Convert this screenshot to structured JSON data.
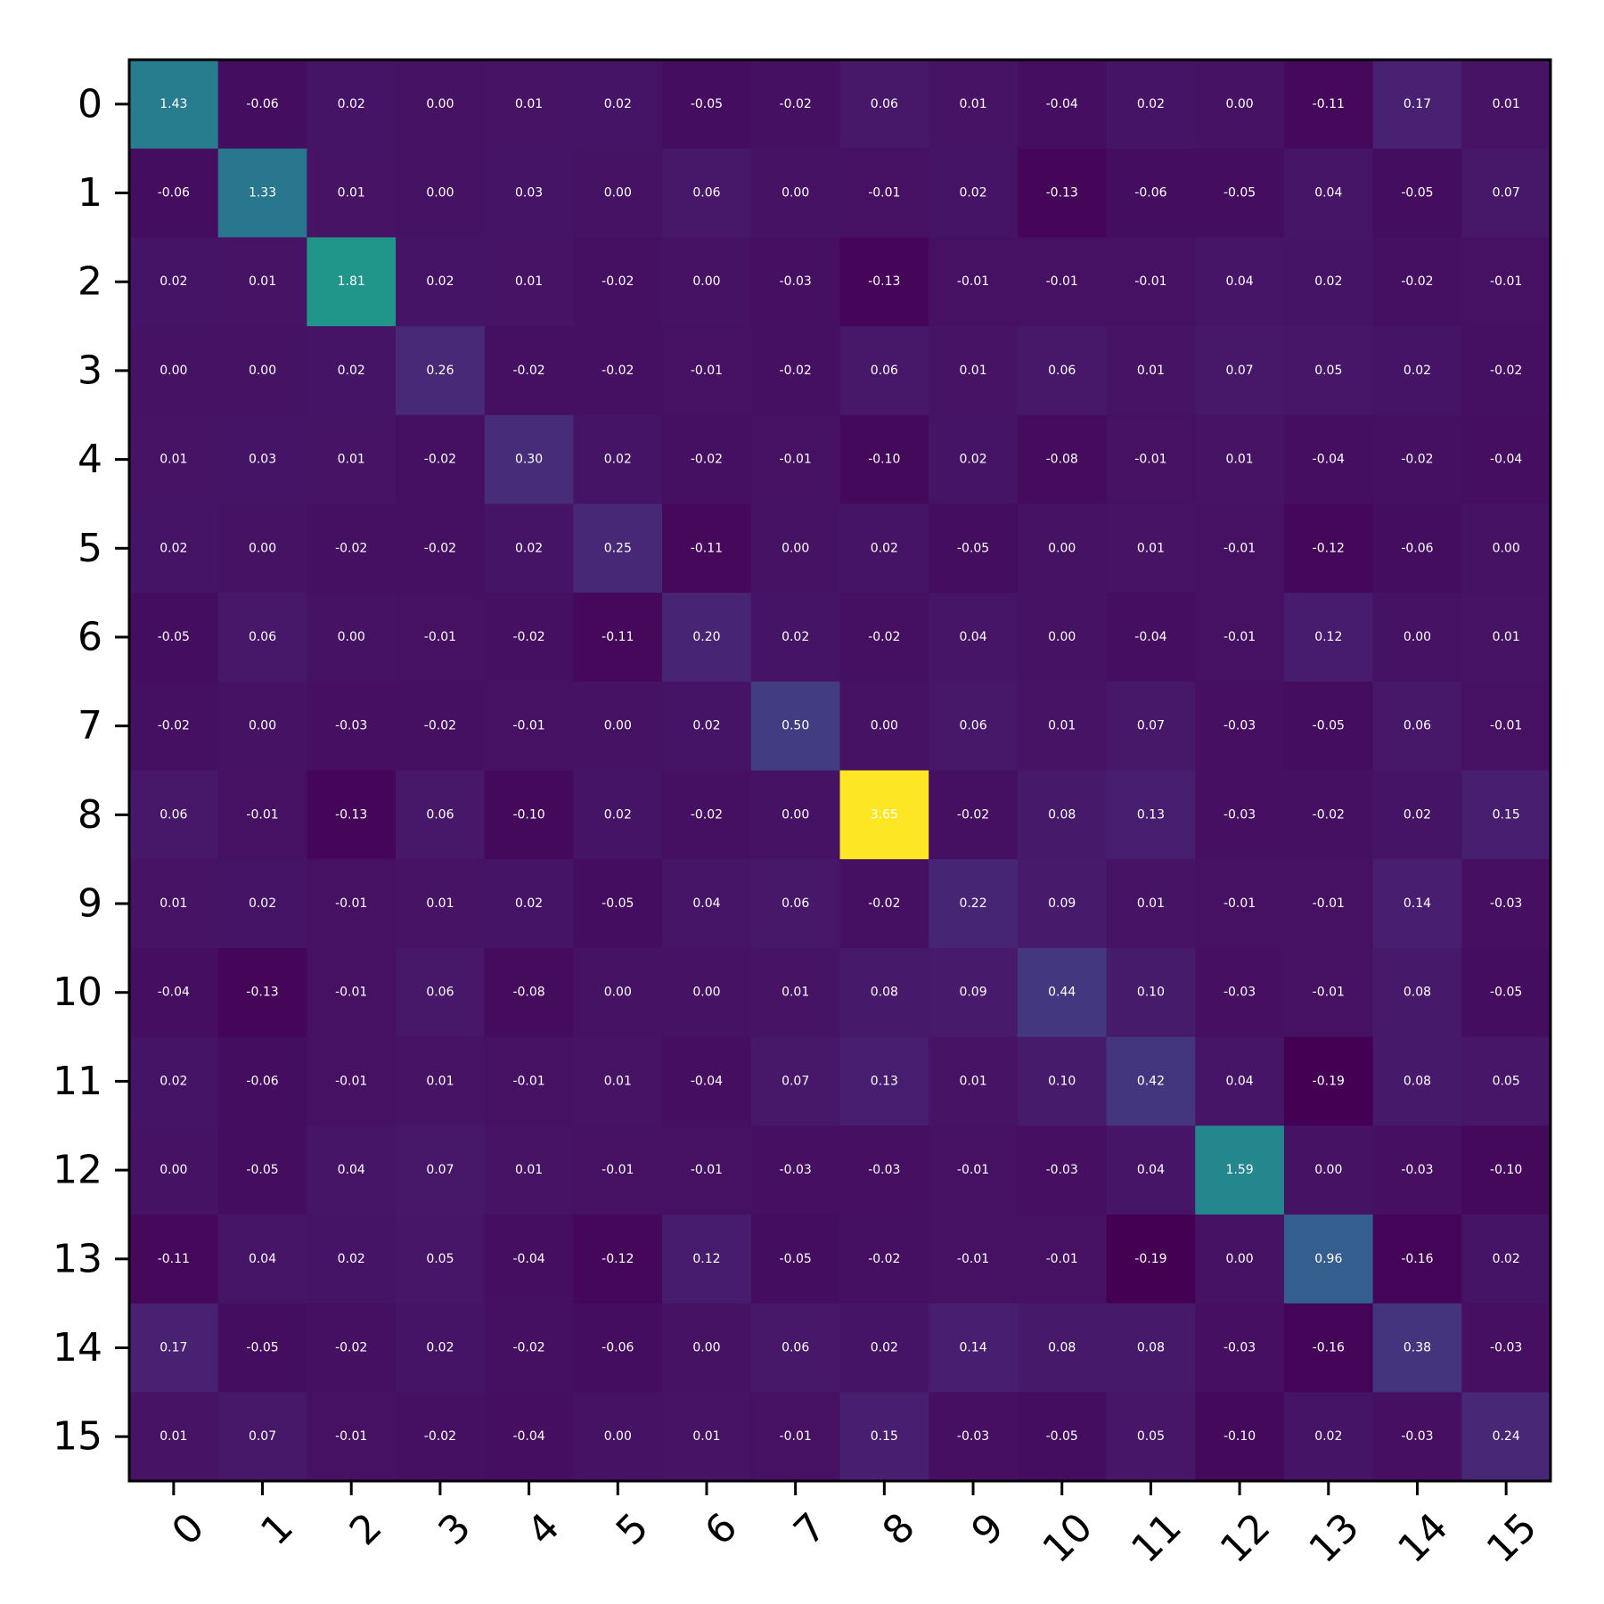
{
  "chart_data": {
    "type": "heatmap",
    "title": "",
    "xlabel": "",
    "ylabel": "",
    "colormap": "viridis",
    "value_range": [
      -0.19,
      3.65
    ],
    "grid": false,
    "legend": "none",
    "x_tick_labels": [
      "0",
      "1",
      "2",
      "3",
      "4",
      "5",
      "6",
      "7",
      "8",
      "9",
      "10",
      "11",
      "12",
      "13",
      "14",
      "15"
    ],
    "y_tick_labels": [
      "0",
      "1",
      "2",
      "3",
      "4",
      "5",
      "6",
      "7",
      "8",
      "9",
      "10",
      "11",
      "12",
      "13",
      "14",
      "15"
    ],
    "values": [
      [
        1.43,
        -0.06,
        0.02,
        -0.0,
        0.01,
        0.02,
        -0.05,
        -0.02,
        0.06,
        0.01,
        -0.04,
        0.02,
        -0.0,
        -0.11,
        0.17,
        0.01
      ],
      [
        -0.06,
        1.33,
        0.01,
        -0.0,
        0.03,
        0.0,
        0.06,
        -0.0,
        -0.01,
        0.02,
        -0.13,
        -0.06,
        -0.05,
        0.04,
        -0.05,
        0.07
      ],
      [
        0.02,
        0.01,
        1.81,
        0.02,
        0.01,
        -0.02,
        -0.0,
        -0.03,
        -0.13,
        -0.01,
        -0.01,
        -0.01,
        0.04,
        0.02,
        -0.02,
        -0.01
      ],
      [
        -0.0,
        -0.0,
        0.02,
        0.26,
        -0.02,
        -0.02,
        -0.01,
        -0.02,
        0.06,
        0.01,
        0.06,
        0.01,
        0.07,
        0.05,
        0.02,
        -0.02
      ],
      [
        0.01,
        0.03,
        0.01,
        -0.02,
        0.3,
        0.02,
        -0.02,
        -0.01,
        -0.1,
        0.02,
        -0.08,
        -0.01,
        0.01,
        -0.04,
        -0.02,
        -0.04
      ],
      [
        0.02,
        0.0,
        -0.02,
        -0.02,
        0.02,
        0.25,
        -0.11,
        -0.0,
        0.02,
        -0.05,
        -0.0,
        0.01,
        -0.01,
        -0.12,
        -0.06,
        0.0
      ],
      [
        -0.05,
        0.06,
        -0.0,
        -0.01,
        -0.02,
        -0.11,
        0.2,
        0.02,
        -0.02,
        0.04,
        -0.0,
        -0.04,
        -0.01,
        0.12,
        -0.0,
        0.01
      ],
      [
        -0.02,
        -0.0,
        -0.03,
        -0.02,
        -0.01,
        -0.0,
        0.02,
        0.5,
        -0.0,
        0.06,
        0.01,
        0.07,
        -0.03,
        -0.05,
        0.06,
        -0.01
      ],
      [
        0.06,
        -0.01,
        -0.13,
        0.06,
        -0.1,
        0.02,
        -0.02,
        -0.0,
        3.65,
        -0.02,
        0.08,
        0.13,
        -0.03,
        -0.02,
        0.02,
        0.15
      ],
      [
        0.01,
        0.02,
        -0.01,
        0.01,
        0.02,
        -0.05,
        0.04,
        0.06,
        -0.02,
        0.22,
        0.09,
        0.01,
        -0.01,
        -0.01,
        0.14,
        -0.03
      ],
      [
        -0.04,
        -0.13,
        -0.01,
        0.06,
        -0.08,
        -0.0,
        -0.0,
        0.01,
        0.08,
        0.09,
        0.44,
        0.1,
        -0.03,
        -0.01,
        0.08,
        -0.05
      ],
      [
        0.02,
        -0.06,
        -0.01,
        0.01,
        -0.01,
        0.01,
        -0.04,
        0.07,
        0.13,
        0.01,
        0.1,
        0.42,
        0.04,
        -0.19,
        0.08,
        0.05
      ],
      [
        -0.0,
        -0.05,
        0.04,
        0.07,
        0.01,
        -0.01,
        -0.01,
        -0.03,
        -0.03,
        -0.01,
        -0.03,
        0.04,
        1.59,
        -0.0,
        -0.03,
        -0.1
      ],
      [
        -0.11,
        0.04,
        0.02,
        0.05,
        -0.04,
        -0.12,
        0.12,
        -0.05,
        -0.02,
        -0.01,
        -0.01,
        -0.19,
        -0.0,
        0.96,
        -0.16,
        0.02
      ],
      [
        0.17,
        -0.05,
        -0.02,
        0.02,
        -0.02,
        -0.06,
        -0.0,
        0.06,
        0.02,
        0.14,
        0.08,
        0.08,
        -0.03,
        -0.16,
        0.38,
        -0.03
      ],
      [
        0.01,
        0.07,
        -0.01,
        -0.02,
        -0.04,
        0.0,
        0.01,
        -0.01,
        0.15,
        -0.03,
        -0.05,
        0.05,
        -0.1,
        0.02,
        -0.03,
        0.24
      ]
    ]
  }
}
